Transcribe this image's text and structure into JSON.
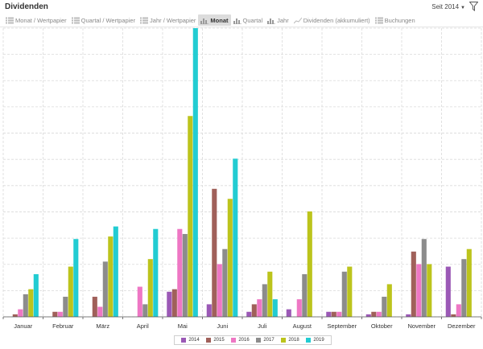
{
  "header": {
    "title": "Dividenden",
    "period_label": "Seit 2014",
    "period_icon": "caret-down-icon",
    "filter_icon": "filter-funnel-icon"
  },
  "tabs": [
    {
      "label": "Monat / Wertpapier",
      "icon": "list-icon",
      "active": false
    },
    {
      "label": "Quartal / Wertpapier",
      "icon": "list-icon",
      "active": false
    },
    {
      "label": "Jahr / Wertpapier",
      "icon": "list-icon",
      "active": false
    },
    {
      "label": "Monat",
      "icon": "bar-chart-icon",
      "active": true
    },
    {
      "label": "Quartal",
      "icon": "bar-chart-icon",
      "active": false
    },
    {
      "label": "Jahr",
      "icon": "bar-chart-icon",
      "active": false
    },
    {
      "label": "Dividenden (akkumuliert)",
      "icon": "line-chart-icon",
      "active": false
    },
    {
      "label": "Buchungen",
      "icon": "list-icon",
      "active": false
    }
  ],
  "chart_data": {
    "type": "bar",
    "categories": [
      "Januar",
      "Februar",
      "März",
      "April",
      "Mai",
      "Juni",
      "Juli",
      "August",
      "September",
      "Oktober",
      "November",
      "Dezember"
    ],
    "series": [
      {
        "name": "2014",
        "color": "#9b59b6",
        "values": [
          0,
          0,
          0,
          0,
          10,
          5,
          2,
          3,
          2,
          1,
          1,
          20
        ]
      },
      {
        "name": "2015",
        "color": "#a0605a",
        "values": [
          1,
          2,
          8,
          0,
          11,
          51,
          5,
          0,
          2,
          2,
          26,
          1
        ]
      },
      {
        "name": "2016",
        "color": "#ee77c4",
        "values": [
          3,
          2,
          4,
          12,
          35,
          21,
          7,
          7,
          2,
          2,
          21,
          5
        ]
      },
      {
        "name": "2017",
        "color": "#8c8c8c",
        "values": [
          9,
          8,
          22,
          5,
          33,
          27,
          13,
          17,
          18,
          8,
          31,
          23
        ]
      },
      {
        "name": "2018",
        "color": "#bcc41c",
        "values": [
          11,
          20,
          32,
          23,
          80,
          47,
          18,
          42,
          20,
          13,
          21,
          27
        ]
      },
      {
        "name": "2019",
        "color": "#22ccd2",
        "values": [
          17,
          31,
          36,
          35,
          115,
          63,
          7,
          0,
          0,
          0,
          0,
          0
        ]
      }
    ],
    "ylim": [
      0,
      115
    ],
    "grid": true,
    "legend_position": "bottom-center"
  }
}
